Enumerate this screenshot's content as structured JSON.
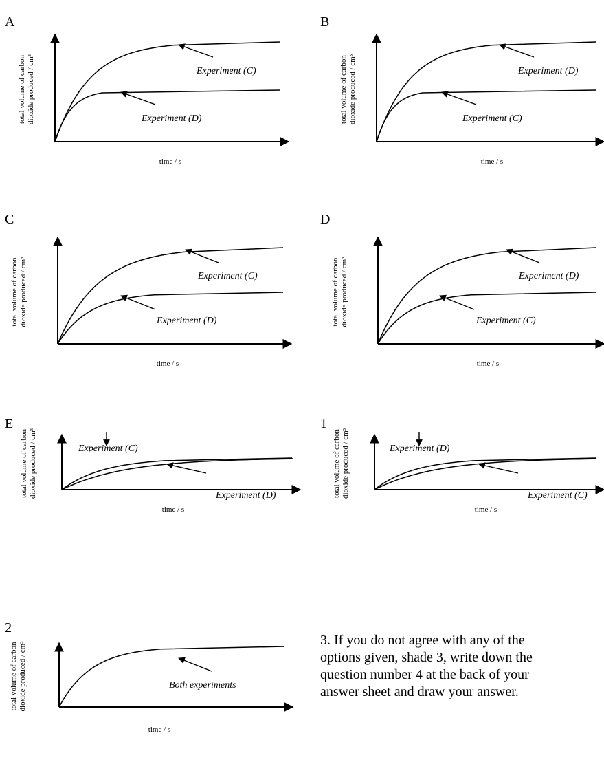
{
  "chart_data": [
    {
      "type": "line",
      "panel": "A",
      "xlabel": "time / s",
      "ylabel": [
        "total volume of carbon",
        "dioxide produced / cm³"
      ],
      "series": [
        {
          "name": "Experiment (C)",
          "plateau": "higher",
          "rate": "slower"
        },
        {
          "name": "Experiment (D)",
          "plateau": "lower",
          "rate": "faster"
        }
      ]
    },
    {
      "type": "line",
      "panel": "B",
      "xlabel": "time / s",
      "ylabel": [
        "total volume of carbon",
        "dioxide produced / cm³"
      ],
      "series": [
        {
          "name": "Experiment (D)",
          "plateau": "higher",
          "rate": "slower"
        },
        {
          "name": "Experiment (C)",
          "plateau": "lower",
          "rate": "faster"
        }
      ]
    },
    {
      "type": "line",
      "panel": "C",
      "xlabel": "time / s",
      "ylabel": [
        "total volume of carbon",
        "dioxide produced / cm³"
      ],
      "series": [
        {
          "name": "Experiment (C)",
          "plateau": "higher",
          "rate": "same"
        },
        {
          "name": "Experiment (D)",
          "plateau": "lower",
          "rate": "same"
        }
      ]
    },
    {
      "type": "line",
      "panel": "D",
      "xlabel": "time / s",
      "ylabel": [
        "total volume of carbon",
        "dioxide produced / cm³"
      ],
      "series": [
        {
          "name": "Experiment (D)",
          "plateau": "higher",
          "rate": "same"
        },
        {
          "name": "Experiment (C)",
          "plateau": "lower",
          "rate": "same"
        }
      ]
    },
    {
      "type": "line",
      "panel": "E",
      "xlabel": "time / s",
      "ylabel": [
        "total volume of carbon",
        "dioxide produced / cm³"
      ],
      "series": [
        {
          "name": "Experiment (C)",
          "plateau": "same",
          "rate": "faster"
        },
        {
          "name": "Experiment (D)",
          "plateau": "same",
          "rate": "slower"
        }
      ]
    },
    {
      "type": "line",
      "panel": "1",
      "xlabel": "time / s",
      "ylabel": [
        "total volume of carbon",
        "dioxide produced / cm³"
      ],
      "series": [
        {
          "name": "Experiment (D)",
          "plateau": "same",
          "rate": "faster"
        },
        {
          "name": "Experiment (C)",
          "plateau": "same",
          "rate": "slower"
        }
      ]
    },
    {
      "type": "line",
      "panel": "2",
      "xlabel": "time / s",
      "ylabel": [
        "total volume of carbon",
        "dioxide produced / cm³"
      ],
      "series": [
        {
          "name": "Both experiments",
          "plateau": "same",
          "rate": "same"
        }
      ]
    }
  ],
  "note": "3.  If you do not agree with any of the\noptions given, shade 3, write down the\nquestion number 4 at the back of your\nanswer sheet and draw your answer."
}
